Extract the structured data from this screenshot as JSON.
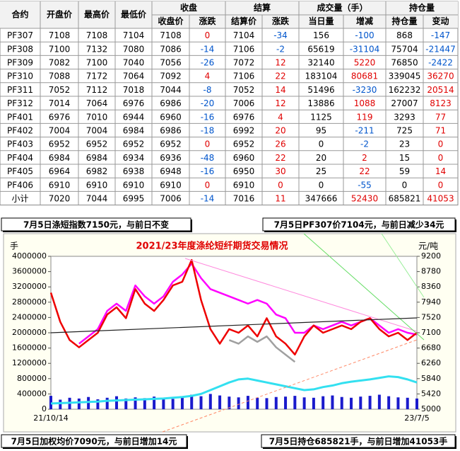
{
  "table": {
    "header_top": [
      "合约",
      "开盘价",
      "最高价",
      "最低价",
      "收盘",
      "结算",
      "成交量（手）",
      "持仓量"
    ],
    "header_sub": [
      "收盘价",
      "涨跌",
      "结算价",
      "涨跌",
      "当日量",
      "增减",
      "持仓量",
      "变动"
    ],
    "rows": [
      [
        "PF307",
        "7108",
        "7108",
        "7104",
        "7108",
        "0",
        "7104",
        "-34",
        "156",
        "-100",
        "868",
        "-147"
      ],
      [
        "PF308",
        "7100",
        "7132",
        "7080",
        "7086",
        "-14",
        "7106",
        "-2",
        "65619",
        "-31104",
        "75704",
        "-21447"
      ],
      [
        "PF309",
        "7082",
        "7100",
        "7040",
        "7056",
        "-26",
        "7072",
        "12",
        "32140",
        "5220",
        "76850",
        "-2422"
      ],
      [
        "PF310",
        "7088",
        "7172",
        "7064",
        "7092",
        "4",
        "7106",
        "22",
        "183104",
        "80681",
        "339045",
        "36270"
      ],
      [
        "PF311",
        "7052",
        "7112",
        "7018",
        "7044",
        "-8",
        "7052",
        "14",
        "51496",
        "-3230",
        "162232",
        "20514"
      ],
      [
        "PF312",
        "7014",
        "7064",
        "6976",
        "6986",
        "-20",
        "7006",
        "12",
        "13886",
        "1088",
        "27007",
        "8123"
      ],
      [
        "PF401",
        "6976",
        "7010",
        "6944",
        "6960",
        "-16",
        "6976",
        "4",
        "1125",
        "119",
        "3293",
        "77"
      ],
      [
        "PF402",
        "7004",
        "7004",
        "6984",
        "6986",
        "-18",
        "6992",
        "20",
        "95",
        "-211",
        "725",
        "71"
      ],
      [
        "PF403",
        "6952",
        "6952",
        "6952",
        "6952",
        "0",
        "6952",
        "26",
        "0",
        "-2",
        "23",
        "0"
      ],
      [
        "PF404",
        "6984",
        "6984",
        "6934",
        "6936",
        "-48",
        "6960",
        "22",
        "20",
        "2",
        "15",
        "0"
      ],
      [
        "PF405",
        "6964",
        "6982",
        "6938",
        "6948",
        "-16",
        "6950",
        "30",
        "25",
        "22",
        "59",
        "14"
      ],
      [
        "PF406",
        "6910",
        "6910",
        "6910",
        "6910",
        "0",
        "6910",
        "0",
        "0",
        "-55",
        "0",
        "0"
      ],
      [
        "小计",
        "7020",
        "7044",
        "6995",
        "7006",
        "-14",
        "7016",
        "11",
        "347666",
        "52430",
        "685821",
        "41053"
      ]
    ]
  },
  "notes": [
    "7月5日涤短指数7150元，与前日不变",
    "7月5日PF307价7104元，与前日减少34元",
    "7月5日加权均价7090元，与前日增加14元",
    "7月5日持仓685821手，与前日增加41053手"
  ],
  "chart_data": {
    "type": "line",
    "title": "2021/23年度涤纶短纤期货交易情况",
    "y_label": "手",
    "y2_label": "元/吨",
    "categories": [
      "21/10/14",
      null,
      null,
      null,
      null,
      null,
      null,
      null,
      null,
      null,
      null,
      null,
      null,
      null,
      null,
      null,
      null,
      null,
      null,
      null,
      null,
      null,
      null,
      null,
      null,
      null,
      null,
      null,
      null,
      null,
      null,
      null,
      null,
      null,
      null,
      null,
      null,
      null,
      null,
      "23/7/5"
    ],
    "ylim": [
      0,
      4000000
    ],
    "yticks": [
      0,
      400000,
      800000,
      1200000,
      1600000,
      2000000,
      2400000,
      2800000,
      3200000,
      3600000,
      4000000
    ],
    "y2lim": [
      5000,
      9200
    ],
    "y2ticks": [
      5000,
      5420,
      5840,
      6260,
      6680,
      7100,
      7520,
      7940,
      8360,
      8780,
      9200
    ],
    "series": [
      {
        "type": "bar",
        "color": "#1a1acc",
        "values": [
          350000,
          250000,
          300000,
          280000,
          320000,
          260000,
          300000,
          340000,
          280000,
          310000,
          290000,
          330000,
          300000,
          270000,
          320000,
          380000,
          340000,
          400000,
          360000,
          330000,
          310000,
          350000,
          300000,
          290000,
          320000,
          330000,
          350000,
          310000,
          300000,
          340000,
          360000,
          320000,
          300000,
          330000,
          350000,
          380000,
          340000,
          310000,
          300000,
          280000
        ]
      },
      {
        "type": "line",
        "color": "#33e0f0",
        "values": [
          150000,
          160000,
          170000,
          180000,
          190000,
          200000,
          220000,
          230000,
          240000,
          250000,
          260000,
          270000,
          280000,
          300000,
          320000,
          350000,
          400000,
          500000,
          600000,
          700000,
          780000,
          800000,
          750000,
          700000,
          650000,
          600000,
          550000,
          500000,
          520000,
          580000,
          620000,
          680000,
          720000,
          750000,
          780000,
          820000,
          860000,
          840000,
          780000,
          700000
        ]
      },
      {
        "type": "line",
        "axis": "y2",
        "color": "#ff00ff",
        "values": [
          null,
          null,
          null,
          6800,
          7000,
          7200,
          7700,
          7900,
          7700,
          8400,
          8100,
          7900,
          8100,
          8500,
          8700,
          9000,
          8600,
          8300,
          8200,
          8100,
          8000,
          7900,
          8000,
          7900,
          7600,
          7500,
          7100,
          7100,
          7300,
          7200,
          7300,
          7400,
          7300,
          7400,
          7500,
          7300,
          7100,
          7200,
          7100,
          7050
        ]
      },
      {
        "type": "line",
        "axis": "y2",
        "color": "#a0a0a0",
        "values": [
          null,
          null,
          null,
          null,
          null,
          null,
          null,
          null,
          null,
          null,
          null,
          null,
          null,
          null,
          null,
          null,
          null,
          null,
          null,
          6900,
          6800,
          7000,
          6850,
          7000,
          6700,
          6500,
          6300,
          null,
          null,
          null,
          null,
          null,
          null,
          null,
          null,
          null,
          null,
          null,
          null,
          null
        ]
      },
      {
        "type": "line",
        "axis": "y2",
        "color": "#ee0000",
        "values": [
          8200,
          7400,
          6900,
          6700,
          6900,
          7100,
          7600,
          7800,
          7500,
          8300,
          7900,
          7700,
          8000,
          8400,
          8500,
          9100,
          8000,
          7200,
          6800,
          7200,
          7100,
          7300,
          7000,
          7500,
          7000,
          6800,
          6500,
          7000,
          7300,
          7100,
          7200,
          7300,
          7200,
          7400,
          7500,
          7200,
          7000,
          7100,
          6900,
          7100
        ]
      }
    ]
  }
}
